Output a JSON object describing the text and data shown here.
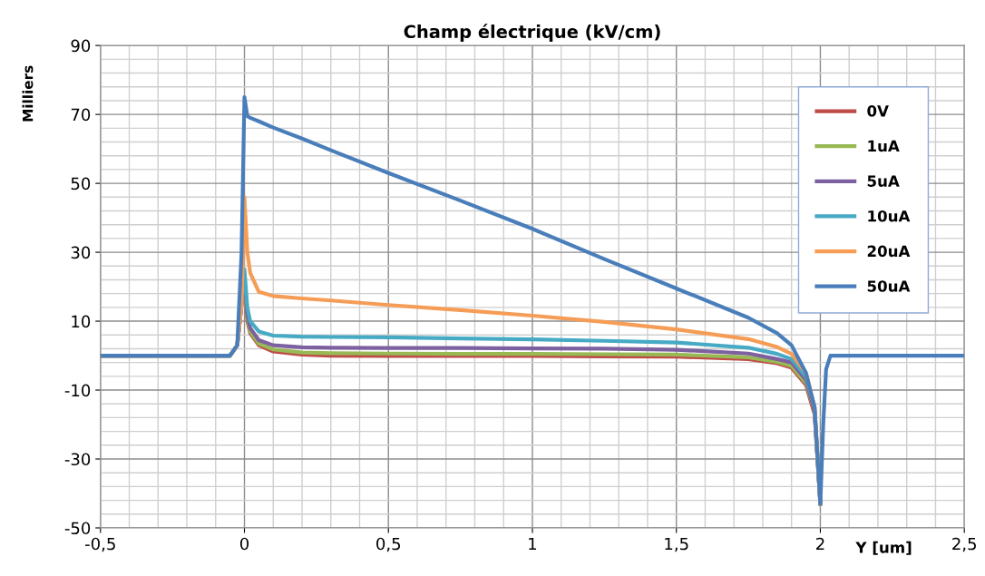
{
  "chart_data": {
    "type": "line",
    "title": "Champ électrique (kV/cm)",
    "xlabel": "Y [um]",
    "ylabel": "Milliers",
    "xlim": [
      -0.5,
      2.5
    ],
    "ylim": [
      -50,
      90
    ],
    "xticks": [
      {
        "value": -0.5,
        "label": "-0,5"
      },
      0,
      {
        "value": 0.5,
        "label": "0,5"
      },
      1,
      {
        "value": 1.5,
        "label": "1,5"
      },
      2,
      {
        "value": 2.5,
        "label": "2,5"
      }
    ],
    "yticks": [
      -50,
      -30,
      -10,
      10,
      30,
      50,
      70,
      90
    ],
    "grid": true,
    "legend": "top right",
    "marker": "none",
    "line_style": "solid",
    "x": [
      -0.5,
      -0.05,
      -0.025,
      -0.01,
      0,
      0.01,
      0.02,
      0.05,
      0.1,
      0.2,
      0.3,
      0.5,
      0.75,
      1,
      1.25,
      1.5,
      1.75,
      1.85,
      1.9,
      1.95,
      1.98,
      2,
      2.01,
      2.02,
      2.035,
      2.5
    ],
    "series": [
      {
        "name": "0V",
        "color": "#be4b48",
        "values": [
          0,
          0,
          3,
          15,
          20,
          10,
          6.5,
          3,
          1.2,
          0.3,
          0,
          -0.1,
          -0.1,
          -0.1,
          -0.2,
          -0.3,
          -1,
          -2.2,
          -3.5,
          -8.5,
          -17,
          -43,
          null,
          null,
          null,
          null
        ]
      },
      {
        "name": "1uA",
        "color": "#98b954",
        "values": [
          0,
          0,
          3,
          15,
          21,
          11,
          7,
          3.5,
          1.8,
          0.9,
          0.7,
          0.6,
          0.5,
          0.5,
          0.4,
          0.3,
          -0.5,
          -1.8,
          -3,
          -8,
          -16,
          -43,
          null,
          null,
          null,
          null
        ]
      },
      {
        "name": "5uA",
        "color": "#7d60a0",
        "values": [
          0,
          0,
          3,
          15,
          22,
          12,
          8,
          4.5,
          3,
          2.4,
          2.3,
          2.2,
          2.2,
          2.1,
          2,
          1.7,
          0.6,
          -1,
          -2,
          -7,
          -16,
          -43,
          null,
          null,
          null,
          null
        ]
      },
      {
        "name": "10uA",
        "color": "#46aac5",
        "values": [
          0,
          0,
          3,
          15,
          25,
          14,
          10,
          7,
          5.8,
          5.5,
          5.4,
          5.3,
          5,
          4.7,
          4.3,
          3.8,
          2.3,
          0.5,
          -1,
          -6,
          -15,
          -43,
          null,
          null,
          null,
          null
        ]
      },
      {
        "name": "20uA",
        "color": "#f59d56",
        "values": [
          0,
          0,
          3,
          15,
          46,
          30,
          24,
          18.5,
          17.3,
          16.6,
          16,
          14.7,
          13.2,
          11.6,
          9.8,
          7.6,
          4.8,
          2.5,
          0.5,
          -5,
          -15,
          -43,
          null,
          null,
          null,
          null
        ]
      },
      {
        "name": "50uA",
        "color": "#4a7ebb",
        "values": [
          0,
          0,
          3,
          30,
          75,
          69.5,
          69,
          68,
          66.2,
          63,
          59.6,
          53,
          45,
          36.8,
          28,
          19.5,
          11,
          6.5,
          3,
          -5,
          -15,
          -43,
          -20,
          -4,
          0,
          0
        ]
      }
    ]
  }
}
